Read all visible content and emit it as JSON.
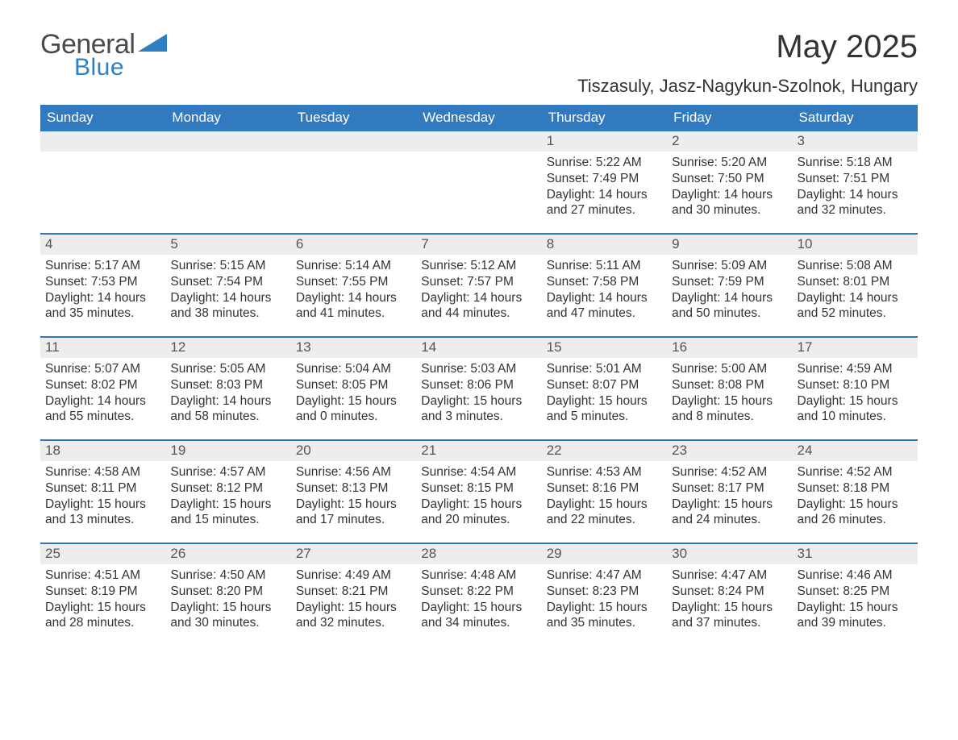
{
  "brand": {
    "general": "General",
    "blue": "Blue",
    "accent_color": "#2f7fc2"
  },
  "header": {
    "title": "May 2025",
    "location": "Tiszasuly, Jasz-Nagykun-Szolnok, Hungary"
  },
  "style": {
    "header_bg": "#327ac0",
    "header_text_color": "#ffffff",
    "daynum_bg": "#ededed",
    "daynum_text": "#555555",
    "body_text": "#333333",
    "row_separator": "#327ac0",
    "page_bg": "#ffffff",
    "title_fontsize": 40,
    "subtitle_fontsize": 22,
    "dow_fontsize": 17,
    "body_fontsize": 15.5
  },
  "calendar": {
    "type": "table",
    "columns": [
      "Sunday",
      "Monday",
      "Tuesday",
      "Wednesday",
      "Thursday",
      "Friday",
      "Saturday"
    ],
    "weeks": [
      [
        {
          "n": "",
          "sunrise": "",
          "sunset": "",
          "daylight": ""
        },
        {
          "n": "",
          "sunrise": "",
          "sunset": "",
          "daylight": ""
        },
        {
          "n": "",
          "sunrise": "",
          "sunset": "",
          "daylight": ""
        },
        {
          "n": "",
          "sunrise": "",
          "sunset": "",
          "daylight": ""
        },
        {
          "n": "1",
          "sunrise": "Sunrise: 5:22 AM",
          "sunset": "Sunset: 7:49 PM",
          "daylight": "Daylight: 14 hours and 27 minutes."
        },
        {
          "n": "2",
          "sunrise": "Sunrise: 5:20 AM",
          "sunset": "Sunset: 7:50 PM",
          "daylight": "Daylight: 14 hours and 30 minutes."
        },
        {
          "n": "3",
          "sunrise": "Sunrise: 5:18 AM",
          "sunset": "Sunset: 7:51 PM",
          "daylight": "Daylight: 14 hours and 32 minutes."
        }
      ],
      [
        {
          "n": "4",
          "sunrise": "Sunrise: 5:17 AM",
          "sunset": "Sunset: 7:53 PM",
          "daylight": "Daylight: 14 hours and 35 minutes."
        },
        {
          "n": "5",
          "sunrise": "Sunrise: 5:15 AM",
          "sunset": "Sunset: 7:54 PM",
          "daylight": "Daylight: 14 hours and 38 minutes."
        },
        {
          "n": "6",
          "sunrise": "Sunrise: 5:14 AM",
          "sunset": "Sunset: 7:55 PM",
          "daylight": "Daylight: 14 hours and 41 minutes."
        },
        {
          "n": "7",
          "sunrise": "Sunrise: 5:12 AM",
          "sunset": "Sunset: 7:57 PM",
          "daylight": "Daylight: 14 hours and 44 minutes."
        },
        {
          "n": "8",
          "sunrise": "Sunrise: 5:11 AM",
          "sunset": "Sunset: 7:58 PM",
          "daylight": "Daylight: 14 hours and 47 minutes."
        },
        {
          "n": "9",
          "sunrise": "Sunrise: 5:09 AM",
          "sunset": "Sunset: 7:59 PM",
          "daylight": "Daylight: 14 hours and 50 minutes."
        },
        {
          "n": "10",
          "sunrise": "Sunrise: 5:08 AM",
          "sunset": "Sunset: 8:01 PM",
          "daylight": "Daylight: 14 hours and 52 minutes."
        }
      ],
      [
        {
          "n": "11",
          "sunrise": "Sunrise: 5:07 AM",
          "sunset": "Sunset: 8:02 PM",
          "daylight": "Daylight: 14 hours and 55 minutes."
        },
        {
          "n": "12",
          "sunrise": "Sunrise: 5:05 AM",
          "sunset": "Sunset: 8:03 PM",
          "daylight": "Daylight: 14 hours and 58 minutes."
        },
        {
          "n": "13",
          "sunrise": "Sunrise: 5:04 AM",
          "sunset": "Sunset: 8:05 PM",
          "daylight": "Daylight: 15 hours and 0 minutes."
        },
        {
          "n": "14",
          "sunrise": "Sunrise: 5:03 AM",
          "sunset": "Sunset: 8:06 PM",
          "daylight": "Daylight: 15 hours and 3 minutes."
        },
        {
          "n": "15",
          "sunrise": "Sunrise: 5:01 AM",
          "sunset": "Sunset: 8:07 PM",
          "daylight": "Daylight: 15 hours and 5 minutes."
        },
        {
          "n": "16",
          "sunrise": "Sunrise: 5:00 AM",
          "sunset": "Sunset: 8:08 PM",
          "daylight": "Daylight: 15 hours and 8 minutes."
        },
        {
          "n": "17",
          "sunrise": "Sunrise: 4:59 AM",
          "sunset": "Sunset: 8:10 PM",
          "daylight": "Daylight: 15 hours and 10 minutes."
        }
      ],
      [
        {
          "n": "18",
          "sunrise": "Sunrise: 4:58 AM",
          "sunset": "Sunset: 8:11 PM",
          "daylight": "Daylight: 15 hours and 13 minutes."
        },
        {
          "n": "19",
          "sunrise": "Sunrise: 4:57 AM",
          "sunset": "Sunset: 8:12 PM",
          "daylight": "Daylight: 15 hours and 15 minutes."
        },
        {
          "n": "20",
          "sunrise": "Sunrise: 4:56 AM",
          "sunset": "Sunset: 8:13 PM",
          "daylight": "Daylight: 15 hours and 17 minutes."
        },
        {
          "n": "21",
          "sunrise": "Sunrise: 4:54 AM",
          "sunset": "Sunset: 8:15 PM",
          "daylight": "Daylight: 15 hours and 20 minutes."
        },
        {
          "n": "22",
          "sunrise": "Sunrise: 4:53 AM",
          "sunset": "Sunset: 8:16 PM",
          "daylight": "Daylight: 15 hours and 22 minutes."
        },
        {
          "n": "23",
          "sunrise": "Sunrise: 4:52 AM",
          "sunset": "Sunset: 8:17 PM",
          "daylight": "Daylight: 15 hours and 24 minutes."
        },
        {
          "n": "24",
          "sunrise": "Sunrise: 4:52 AM",
          "sunset": "Sunset: 8:18 PM",
          "daylight": "Daylight: 15 hours and 26 minutes."
        }
      ],
      [
        {
          "n": "25",
          "sunrise": "Sunrise: 4:51 AM",
          "sunset": "Sunset: 8:19 PM",
          "daylight": "Daylight: 15 hours and 28 minutes."
        },
        {
          "n": "26",
          "sunrise": "Sunrise: 4:50 AM",
          "sunset": "Sunset: 8:20 PM",
          "daylight": "Daylight: 15 hours and 30 minutes."
        },
        {
          "n": "27",
          "sunrise": "Sunrise: 4:49 AM",
          "sunset": "Sunset: 8:21 PM",
          "daylight": "Daylight: 15 hours and 32 minutes."
        },
        {
          "n": "28",
          "sunrise": "Sunrise: 4:48 AM",
          "sunset": "Sunset: 8:22 PM",
          "daylight": "Daylight: 15 hours and 34 minutes."
        },
        {
          "n": "29",
          "sunrise": "Sunrise: 4:47 AM",
          "sunset": "Sunset: 8:23 PM",
          "daylight": "Daylight: 15 hours and 35 minutes."
        },
        {
          "n": "30",
          "sunrise": "Sunrise: 4:47 AM",
          "sunset": "Sunset: 8:24 PM",
          "daylight": "Daylight: 15 hours and 37 minutes."
        },
        {
          "n": "31",
          "sunrise": "Sunrise: 4:46 AM",
          "sunset": "Sunset: 8:25 PM",
          "daylight": "Daylight: 15 hours and 39 minutes."
        }
      ]
    ]
  }
}
